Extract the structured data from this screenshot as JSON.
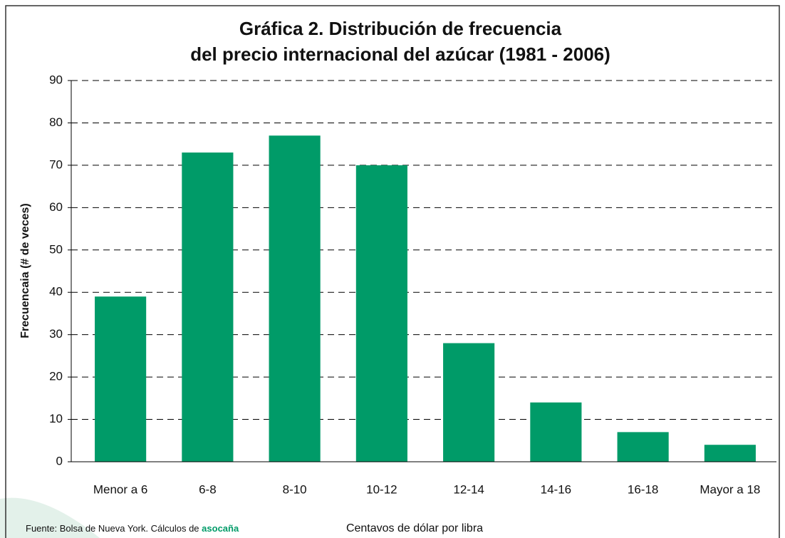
{
  "chart_data": {
    "type": "bar",
    "title": [
      "Gráfica 2. Distribución de frecuencia",
      "del precio internacional del azúcar (1981 - 2006)"
    ],
    "x_label": "Centavos de dólar por libra",
    "y_label": "Frecuencaia (# de veces)",
    "categories": [
      "Menor a 6",
      "6-8",
      "8-10",
      "10-12",
      "12-14",
      "14-16",
      "16-18",
      "Mayor a 18"
    ],
    "values": [
      39,
      73,
      77,
      70,
      28,
      14,
      7,
      4
    ],
    "color": "#009b68",
    "ylim": [
      0,
      90
    ],
    "yticks": [
      0,
      10,
      20,
      30,
      40,
      50,
      60,
      70,
      80,
      90
    ],
    "grid": true,
    "source": "Fuente: Bolsa de Nueva York. Cálculos de",
    "source_brand": "asocaña"
  }
}
